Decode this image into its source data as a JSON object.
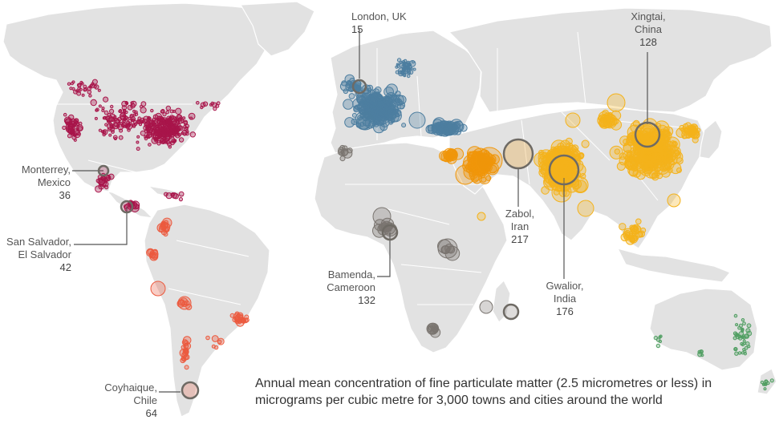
{
  "caption": "Annual mean concentration of fine particulate matter (2.5 micrometres or less) in micrograms per cubic metre for 3,000 towns and cities around the world",
  "colors": {
    "land": "#e2e2e2",
    "north_central_america": "#a8154a",
    "south_america": "#ec5a3e",
    "europe": "#4d7ea0",
    "africa": "#7a7570",
    "middle_east": "#f0960a",
    "asia": "#f4b21b",
    "oceania": "#4f9e61",
    "leader_line": "#555555"
  },
  "callouts": [
    {
      "id": "london",
      "name": "London, UK",
      "value": "15"
    },
    {
      "id": "xingtai",
      "name": "Xingtai, China",
      "name_line1": "Xingtai,",
      "name_line2": "China",
      "value": "128"
    },
    {
      "id": "monterrey",
      "name_line1": "Monterrey,",
      "name_line2": "Mexico",
      "value": "36"
    },
    {
      "id": "san-salvador",
      "name_line1": "San Salvador,",
      "name_line2": "El Salvador",
      "value": "42"
    },
    {
      "id": "bamenda",
      "name_line1": "Bamenda,",
      "name_line2": "Cameroon",
      "value": "132"
    },
    {
      "id": "zabol",
      "name_line1": "Zabol,",
      "name_line2": "Iran",
      "value": "217"
    },
    {
      "id": "gwalior",
      "name_line1": "Gwalior,",
      "name_line2": "India",
      "value": "176"
    },
    {
      "id": "coyhaique",
      "name_line1": "Coyhaique,",
      "name_line2": "Chile",
      "value": "64"
    }
  ]
}
